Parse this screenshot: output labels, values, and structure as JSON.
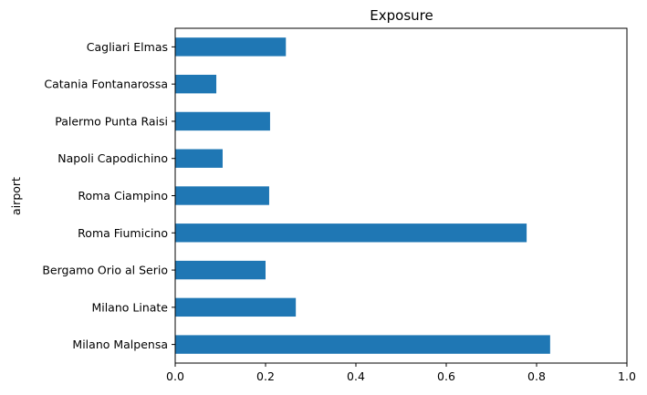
{
  "chart_data": {
    "type": "bar",
    "orientation": "horizontal",
    "title": "Exposure",
    "xlabel": "",
    "ylabel": "airport",
    "xlim": [
      0,
      1
    ],
    "xticks": [
      "0.0",
      "0.2",
      "0.4",
      "0.6",
      "0.8",
      "1.0"
    ],
    "grid": false,
    "bar_color": "#1f77b4",
    "categories": [
      "Milano Malpensa",
      "Milano Linate",
      "Bergamo Orio al Serio",
      "Roma Fiumicino",
      "Roma Ciampino",
      "Napoli Capodichino",
      "Palermo Punta Raisi",
      "Catania Fontanarossa",
      "Cagliari Elmas"
    ],
    "values": [
      0.83,
      0.267,
      0.2,
      0.778,
      0.208,
      0.105,
      0.21,
      0.091,
      0.245
    ]
  }
}
